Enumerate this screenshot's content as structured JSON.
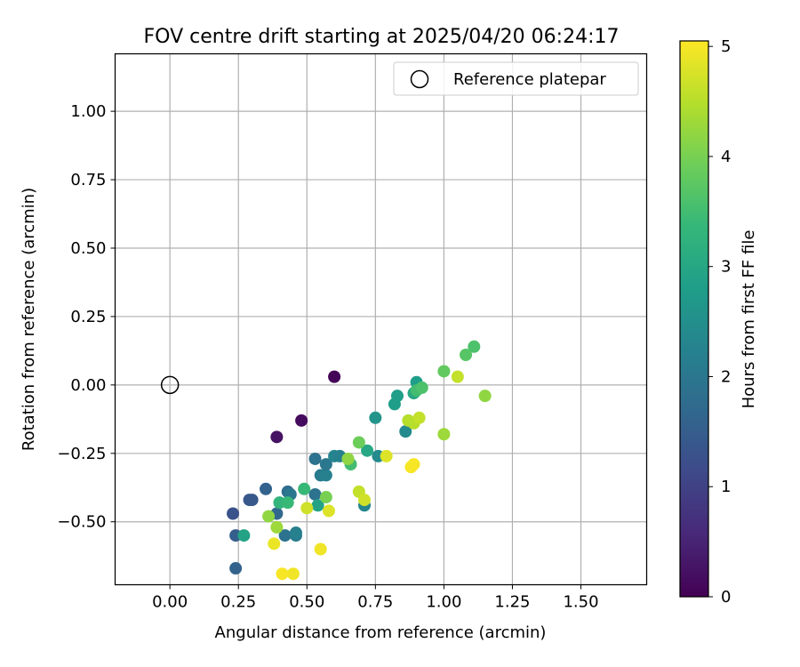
{
  "chart_data": {
    "type": "scatter",
    "title": "FOV centre drift starting at 2025/04/20 06:24:17",
    "xlabel": "Angular distance from reference (arcmin)",
    "ylabel": "Rotation from reference (arcmin)",
    "xlim": [
      -0.2,
      1.74
    ],
    "ylim": [
      -0.73,
      1.21
    ],
    "xticks": [
      0.0,
      0.25,
      0.5,
      0.75,
      1.0,
      1.25,
      1.5
    ],
    "xtick_labels": [
      "0.00",
      "0.25",
      "0.50",
      "0.75",
      "1.00",
      "1.25",
      "1.50"
    ],
    "yticks": [
      -0.5,
      -0.25,
      0.0,
      0.25,
      0.5,
      0.75,
      1.0
    ],
    "ytick_labels": [
      "−0.50",
      "−0.25",
      "0.00",
      "0.25",
      "0.50",
      "0.75",
      "1.00"
    ],
    "grid": true,
    "legend": {
      "position": "top-right",
      "entries": [
        "Reference platepar"
      ]
    },
    "reference_point": {
      "name": "Reference platepar",
      "x": 0.0,
      "y": 0.0,
      "marker": "hollow circle"
    },
    "colorbar": {
      "label": "Hours from first FF file",
      "min": 0,
      "max": 5.05,
      "ticks": [
        0,
        1,
        2,
        3,
        4,
        5
      ],
      "tick_labels": [
        "0",
        "1",
        "2",
        "3",
        "4",
        "5"
      ],
      "colormap": "viridis"
    },
    "points": [
      {
        "x": 0.6,
        "y": 0.03,
        "h": 0.05
      },
      {
        "x": 0.48,
        "y": -0.13,
        "h": 0.15
      },
      {
        "x": 0.39,
        "y": -0.19,
        "h": 0.25
      },
      {
        "x": 0.23,
        "y": -0.47,
        "h": 1.3
      },
      {
        "x": 0.24,
        "y": -0.55,
        "h": 1.5
      },
      {
        "x": 0.24,
        "y": -0.67,
        "h": 1.6
      },
      {
        "x": 0.29,
        "y": -0.42,
        "h": 1.4
      },
      {
        "x": 0.3,
        "y": -0.42,
        "h": 1.4
      },
      {
        "x": 0.35,
        "y": -0.38,
        "h": 1.6
      },
      {
        "x": 0.39,
        "y": -0.47,
        "h": 1.7
      },
      {
        "x": 0.42,
        "y": -0.55,
        "h": 1.9
      },
      {
        "x": 0.43,
        "y": -0.39,
        "h": 1.8
      },
      {
        "x": 0.44,
        "y": -0.4,
        "h": 2.0
      },
      {
        "x": 0.46,
        "y": -0.55,
        "h": 2.1
      },
      {
        "x": 0.46,
        "y": -0.54,
        "h": 2.2
      },
      {
        "x": 0.53,
        "y": -0.27,
        "h": 1.9
      },
      {
        "x": 0.53,
        "y": -0.4,
        "h": 1.9
      },
      {
        "x": 0.55,
        "y": -0.33,
        "h": 2.1
      },
      {
        "x": 0.57,
        "y": -0.33,
        "h": 2.2
      },
      {
        "x": 0.57,
        "y": -0.29,
        "h": 2.0
      },
      {
        "x": 0.6,
        "y": -0.26,
        "h": 2.3
      },
      {
        "x": 0.62,
        "y": -0.26,
        "h": 2.2
      },
      {
        "x": 0.71,
        "y": -0.44,
        "h": 2.3
      },
      {
        "x": 0.75,
        "y": -0.12,
        "h": 2.6
      },
      {
        "x": 0.76,
        "y": -0.26,
        "h": 2.4
      },
      {
        "x": 0.82,
        "y": -0.07,
        "h": 2.8
      },
      {
        "x": 0.83,
        "y": -0.04,
        "h": 2.8
      },
      {
        "x": 0.86,
        "y": -0.17,
        "h": 2.4
      },
      {
        "x": 0.27,
        "y": -0.55,
        "h": 2.9
      },
      {
        "x": 0.54,
        "y": -0.44,
        "h": 2.9
      },
      {
        "x": 0.9,
        "y": 0.01,
        "h": 2.8
      },
      {
        "x": 0.89,
        "y": -0.03,
        "h": 3.0
      },
      {
        "x": 0.72,
        "y": -0.24,
        "h": 3.0
      },
      {
        "x": 0.4,
        "y": -0.43,
        "h": 3.3
      },
      {
        "x": 0.43,
        "y": -0.43,
        "h": 3.4
      },
      {
        "x": 0.66,
        "y": -0.29,
        "h": 3.5
      },
      {
        "x": 0.49,
        "y": -0.38,
        "h": 3.4
      },
      {
        "x": 0.9,
        "y": -0.02,
        "h": 3.5
      },
      {
        "x": 0.92,
        "y": -0.01,
        "h": 3.6
      },
      {
        "x": 1.11,
        "y": 0.14,
        "h": 3.6
      },
      {
        "x": 1.08,
        "y": 0.11,
        "h": 3.7
      },
      {
        "x": 1.0,
        "y": 0.05,
        "h": 3.8
      },
      {
        "x": 0.69,
        "y": -0.21,
        "h": 3.9
      },
      {
        "x": 0.57,
        "y": -0.41,
        "h": 4.0
      },
      {
        "x": 0.36,
        "y": -0.48,
        "h": 4.2
      },
      {
        "x": 0.39,
        "y": -0.52,
        "h": 4.3
      },
      {
        "x": 0.65,
        "y": -0.27,
        "h": 4.2
      },
      {
        "x": 1.15,
        "y": -0.04,
        "h": 4.2
      },
      {
        "x": 1.0,
        "y": -0.18,
        "h": 4.3
      },
      {
        "x": 0.89,
        "y": -0.14,
        "h": 4.5
      },
      {
        "x": 0.87,
        "y": -0.13,
        "h": 4.5
      },
      {
        "x": 0.91,
        "y": -0.12,
        "h": 4.6
      },
      {
        "x": 1.05,
        "y": 0.03,
        "h": 4.6
      },
      {
        "x": 0.69,
        "y": -0.39,
        "h": 4.6
      },
      {
        "x": 0.71,
        "y": -0.42,
        "h": 4.7
      },
      {
        "x": 0.5,
        "y": -0.45,
        "h": 4.7
      },
      {
        "x": 0.58,
        "y": -0.46,
        "h": 4.8
      },
      {
        "x": 0.79,
        "y": -0.26,
        "h": 4.8
      },
      {
        "x": 0.38,
        "y": -0.58,
        "h": 4.9
      },
      {
        "x": 0.55,
        "y": -0.6,
        "h": 4.95
      },
      {
        "x": 0.45,
        "y": -0.69,
        "h": 4.95
      },
      {
        "x": 0.41,
        "y": -0.69,
        "h": 5.0
      },
      {
        "x": 0.88,
        "y": -0.3,
        "h": 5.0
      },
      {
        "x": 0.89,
        "y": -0.29,
        "h": 5.0
      }
    ]
  }
}
